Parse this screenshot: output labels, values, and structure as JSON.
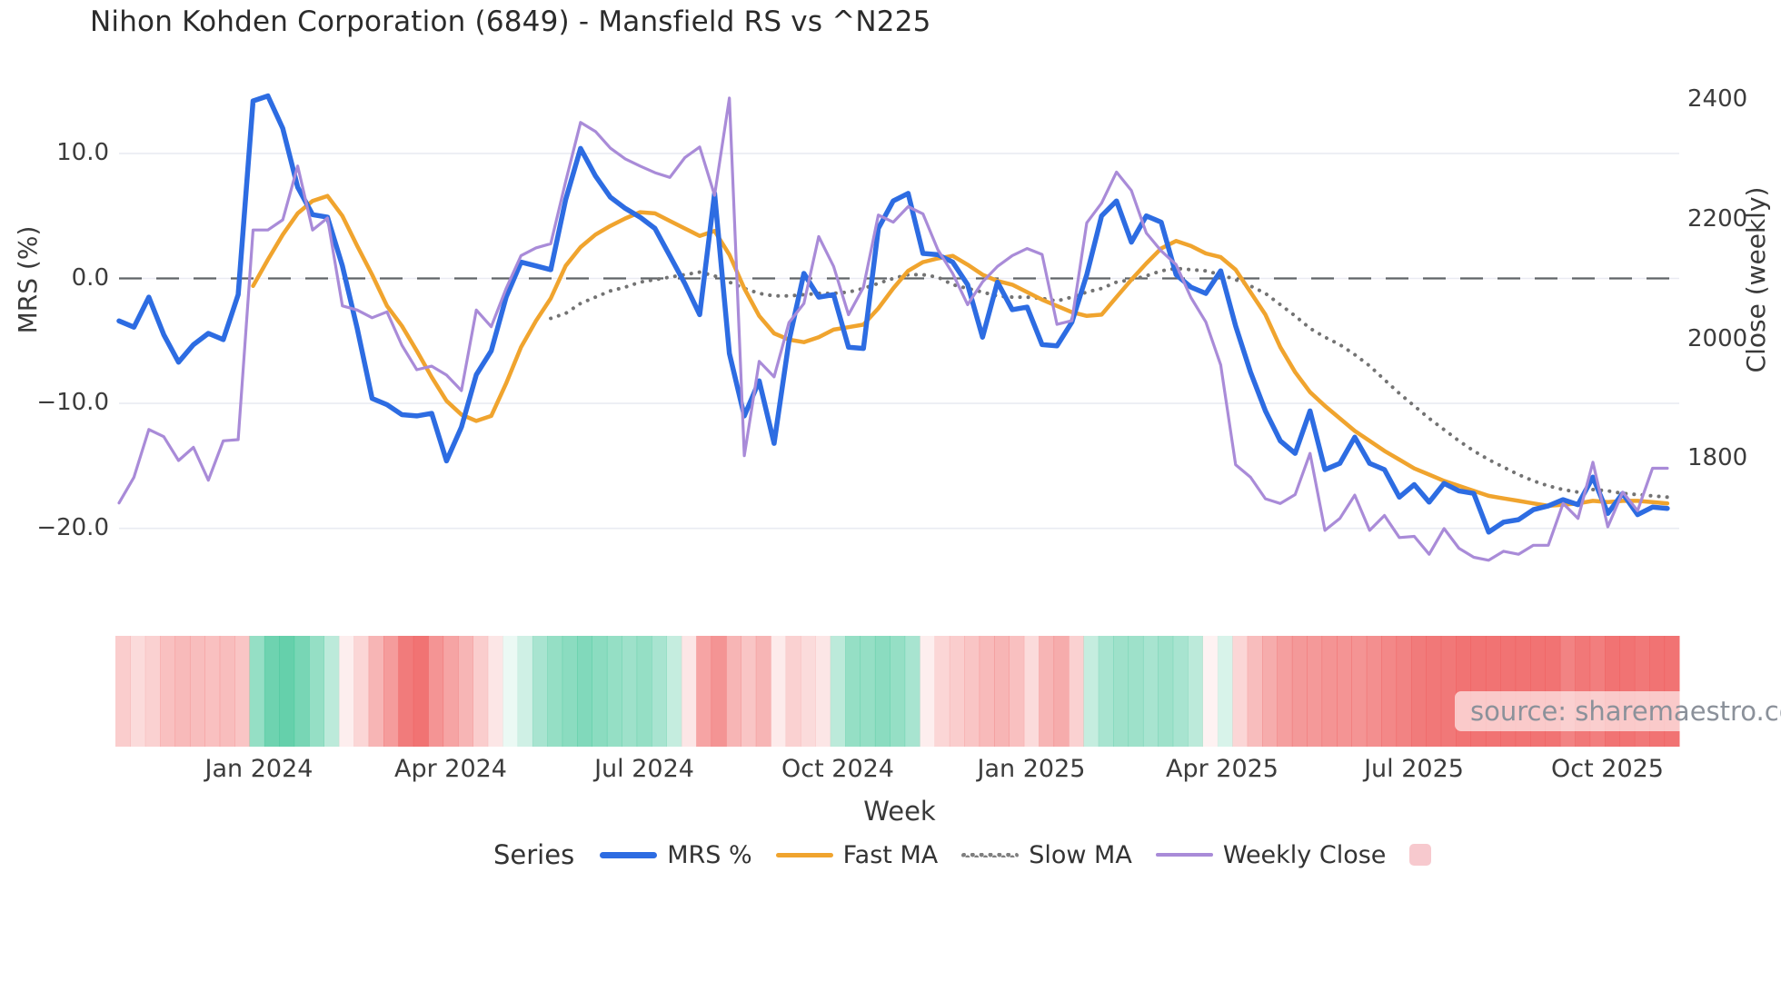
{
  "title": "Nihon Kohden Corporation (6849) - Mansfield RS vs ^N225",
  "source_note": "source: sharemaestro.com",
  "legend": {
    "title": "Series",
    "items": [
      {
        "label": "MRS %",
        "color": "#2d6ce2",
        "style": "solid"
      },
      {
        "label": "Fast MA",
        "color": "#f0a42e",
        "style": "solid"
      },
      {
        "label": "Slow MA",
        "color": "#7f7f7f",
        "style": "dotted"
      },
      {
        "label": "Weekly Close",
        "color": "#a98bd8",
        "style": "solid"
      },
      {
        "label": "",
        "color": "#f7c9ce",
        "style": "swatch"
      }
    ]
  },
  "chart_data": {
    "type": "line",
    "title": "Nihon Kohden Corporation (6849) - Mansfield RS vs ^N225",
    "xlabel": "Week",
    "ylabel_left": "MRS (%)",
    "ylabel_right": "Close (weekly)",
    "grid": true,
    "zero_line_dashed": true,
    "legend_position": "bottom",
    "left_ticks": [
      10.0,
      0.0,
      -10.0,
      -20.0
    ],
    "left_tick_labels": [
      "10.0",
      "0.0",
      "−10.0",
      "−20.0"
    ],
    "left_range": [
      -23.0,
      18.0
    ],
    "right_ticks": [
      2400,
      2200,
      2000,
      1800
    ],
    "right_tick_labels": [
      "2400",
      "2200",
      "2000",
      "1800"
    ],
    "right_range": [
      1555,
      2475
    ],
    "x_tick_labels": [
      "Jan 2024",
      "Apr 2024",
      "Jul 2024",
      "Oct 2024",
      "Jan 2025",
      "Apr 2025",
      "Jul 2025",
      "Oct 2025"
    ],
    "x_tick_weeks": [
      9.4,
      22.3,
      35.3,
      48.3,
      61.3,
      74.1,
      87.0,
      100.0
    ],
    "n_weeks": 105,
    "series": [
      {
        "name": "MRS %",
        "axis": "left",
        "color": "#2d6ce2",
        "style": "solid",
        "width": 5.5,
        "values": [
          -3.4,
          -3.9,
          -1.5,
          -4.5,
          -6.7,
          -5.3,
          -4.4,
          -4.9,
          -1.3,
          14.2,
          14.6,
          12.0,
          7.3,
          5.1,
          4.9,
          1.0,
          -4.0,
          -9.6,
          -10.1,
          -10.9,
          -11.0,
          -10.8,
          -14.6,
          -11.9,
          -7.7,
          -5.8,
          -1.5,
          1.3,
          1.0,
          0.7,
          6.3,
          10.4,
          8.2,
          6.5,
          5.6,
          4.9,
          4.0,
          1.8,
          -0.4,
          -2.9,
          6.8,
          -6.0,
          -11.0,
          -8.2,
          -13.2,
          -5.0,
          0.4,
          -1.5,
          -1.3,
          -5.5,
          -5.6,
          4.0,
          6.2,
          6.8,
          2.0,
          1.9,
          1.3,
          -0.5,
          -4.7,
          -0.3,
          -2.5,
          -2.3,
          -5.3,
          -5.4,
          -3.5,
          0.3,
          5.0,
          6.2,
          2.9,
          5.0,
          4.5,
          0.3,
          -0.7,
          -1.2,
          0.6,
          -3.8,
          -7.5,
          -10.6,
          -13.0,
          -14.0,
          -10.6,
          -15.3,
          -14.8,
          -12.7,
          -14.8,
          -15.3,
          -17.5,
          -16.5,
          -17.9,
          -16.4,
          -17.0,
          -17.2,
          -20.3,
          -19.5,
          -19.3,
          -18.5,
          -18.2,
          -17.7,
          -18.1,
          -15.9,
          -18.8,
          -17.2,
          -18.9,
          -18.3,
          -18.4
        ]
      },
      {
        "name": "Fast MA",
        "axis": "left",
        "color": "#f0a42e",
        "style": "solid",
        "width": 4.5,
        "values": [
          null,
          null,
          null,
          null,
          null,
          null,
          null,
          null,
          null,
          -0.6,
          1.5,
          3.5,
          5.2,
          6.2,
          6.6,
          5.0,
          2.6,
          0.3,
          -2.2,
          -3.8,
          -5.8,
          -7.9,
          -9.8,
          -10.9,
          -11.4,
          -11.0,
          -8.4,
          -5.5,
          -3.4,
          -1.6,
          1.0,
          2.5,
          3.5,
          4.2,
          4.8,
          5.3,
          5.2,
          4.6,
          4.0,
          3.4,
          3.8,
          1.9,
          -0.8,
          -3.0,
          -4.4,
          -4.9,
          -5.1,
          -4.7,
          -4.1,
          -3.9,
          -3.7,
          -2.4,
          -0.8,
          0.6,
          1.3,
          1.6,
          1.8,
          1.1,
          0.3,
          -0.2,
          -0.5,
          -1.1,
          -1.7,
          -2.2,
          -2.7,
          -3.0,
          -2.9,
          -1.5,
          -0.1,
          1.2,
          2.4,
          3.0,
          2.6,
          2.0,
          1.7,
          0.7,
          -1.1,
          -2.9,
          -5.5,
          -7.5,
          -9.1,
          -10.2,
          -11.2,
          -12.2,
          -13.0,
          -13.8,
          -14.5,
          -15.2,
          -15.7,
          -16.2,
          -16.6,
          -17.0,
          -17.4,
          -17.6,
          -17.8,
          -18.0,
          -18.2,
          -18.1,
          -18.0,
          -17.8,
          -17.9,
          -17.8,
          -17.8,
          -17.9,
          -18.0
        ]
      },
      {
        "name": "Slow MA",
        "axis": "left",
        "color": "#737373",
        "style": "dotted",
        "width": 4,
        "values": [
          null,
          null,
          null,
          null,
          null,
          null,
          null,
          null,
          null,
          null,
          null,
          null,
          null,
          null,
          null,
          null,
          null,
          null,
          null,
          null,
          null,
          null,
          null,
          null,
          null,
          null,
          null,
          null,
          null,
          -3.2,
          -2.8,
          -2.0,
          -1.5,
          -1.0,
          -0.7,
          -0.3,
          -0.1,
          0.1,
          0.3,
          0.5,
          0.2,
          -0.3,
          -0.8,
          -1.2,
          -1.4,
          -1.4,
          -1.3,
          -1.2,
          -1.2,
          -1.1,
          -0.8,
          -0.4,
          0.0,
          0.3,
          0.3,
          0.1,
          -0.5,
          -0.8,
          -1.1,
          -1.4,
          -1.5,
          -1.5,
          -1.6,
          -1.8,
          -1.5,
          -1.1,
          -0.8,
          -0.3,
          -0.1,
          0.2,
          0.6,
          0.8,
          0.7,
          0.6,
          0.3,
          -0.1,
          -0.6,
          -1.2,
          -2.1,
          -3.0,
          -4.0,
          -4.7,
          -5.3,
          -6.1,
          -7.0,
          -8.1,
          -9.2,
          -10.2,
          -11.2,
          -12.1,
          -13.0,
          -13.8,
          -14.5,
          -15.1,
          -15.7,
          -16.2,
          -16.6,
          -16.9,
          -17.1,
          -16.9,
          -17.0,
          -17.2,
          -17.3,
          -17.4,
          -17.5
        ]
      },
      {
        "name": "Weekly Close",
        "axis": "right",
        "color": "#a98bd8",
        "style": "solid",
        "width": 3.2,
        "values": [
          1726,
          1769,
          1849,
          1837,
          1797,
          1819,
          1764,
          1830,
          1832,
          2183,
          2183,
          2200,
          2290,
          2183,
          2203,
          2056,
          2049,
          2036,
          2046,
          1990,
          1949,
          1955,
          1940,
          1914,
          2049,
          2021,
          2085,
          2140,
          2153,
          2160,
          2264,
          2363,
          2348,
          2320,
          2302,
          2290,
          2279,
          2271,
          2304,
          2322,
          2241,
          2404,
          1805,
          1963,
          1937,
          2028,
          2060,
          2172,
          2122,
          2041,
          2087,
          2208,
          2196,
          2222,
          2210,
          2150,
          2110,
          2058,
          2096,
          2122,
          2140,
          2152,
          2142,
          2025,
          2031,
          2195,
          2228,
          2280,
          2249,
          2178,
          2148,
          2125,
          2070,
          2029,
          1957,
          1790,
          1769,
          1733,
          1725,
          1740,
          1809,
          1680,
          1700,
          1739,
          1680,
          1705,
          1668,
          1670,
          1640,
          1683,
          1650,
          1635,
          1630,
          1645,
          1640,
          1655,
          1655,
          1725,
          1700,
          1794,
          1686,
          1744,
          1713,
          1784,
          1784
        ]
      }
    ],
    "heatmap": {
      "description": "weekly color strip under chart, red negative / green positive intensity",
      "positive_color": "#3ec496",
      "negative_color": "#ee5a5a",
      "values": [
        -0.3,
        -0.22,
        -0.28,
        -0.38,
        -0.42,
        -0.4,
        -0.38,
        -0.4,
        -0.35,
        0.55,
        0.75,
        0.8,
        0.7,
        0.55,
        0.35,
        -0.1,
        -0.25,
        -0.45,
        -0.6,
        -0.8,
        -0.85,
        -0.65,
        -0.55,
        -0.45,
        -0.3,
        -0.15,
        0.1,
        0.25,
        0.45,
        0.55,
        0.6,
        0.65,
        0.6,
        0.55,
        0.5,
        0.55,
        0.45,
        0.3,
        -0.15,
        -0.55,
        -0.65,
        -0.45,
        -0.35,
        -0.45,
        -0.12,
        -0.28,
        -0.22,
        -0.15,
        0.35,
        0.55,
        0.55,
        0.6,
        0.55,
        0.45,
        -0.1,
        -0.25,
        -0.3,
        -0.35,
        -0.42,
        -0.45,
        -0.38,
        -0.22,
        -0.45,
        -0.5,
        -0.28,
        0.3,
        0.45,
        0.5,
        0.5,
        0.45,
        0.5,
        0.45,
        0.35,
        -0.08,
        0.2,
        -0.25,
        -0.4,
        -0.5,
        -0.58,
        -0.62,
        -0.62,
        -0.65,
        -0.65,
        -0.65,
        -0.68,
        -0.72,
        -0.75,
        -0.8,
        -0.82,
        -0.82,
        -0.85,
        -0.85,
        -0.85,
        -0.85,
        -0.85,
        -0.85,
        -0.85,
        -0.75,
        -0.82,
        -0.78,
        -0.85,
        -0.85,
        -0.82,
        -0.85,
        -0.85
      ]
    }
  }
}
